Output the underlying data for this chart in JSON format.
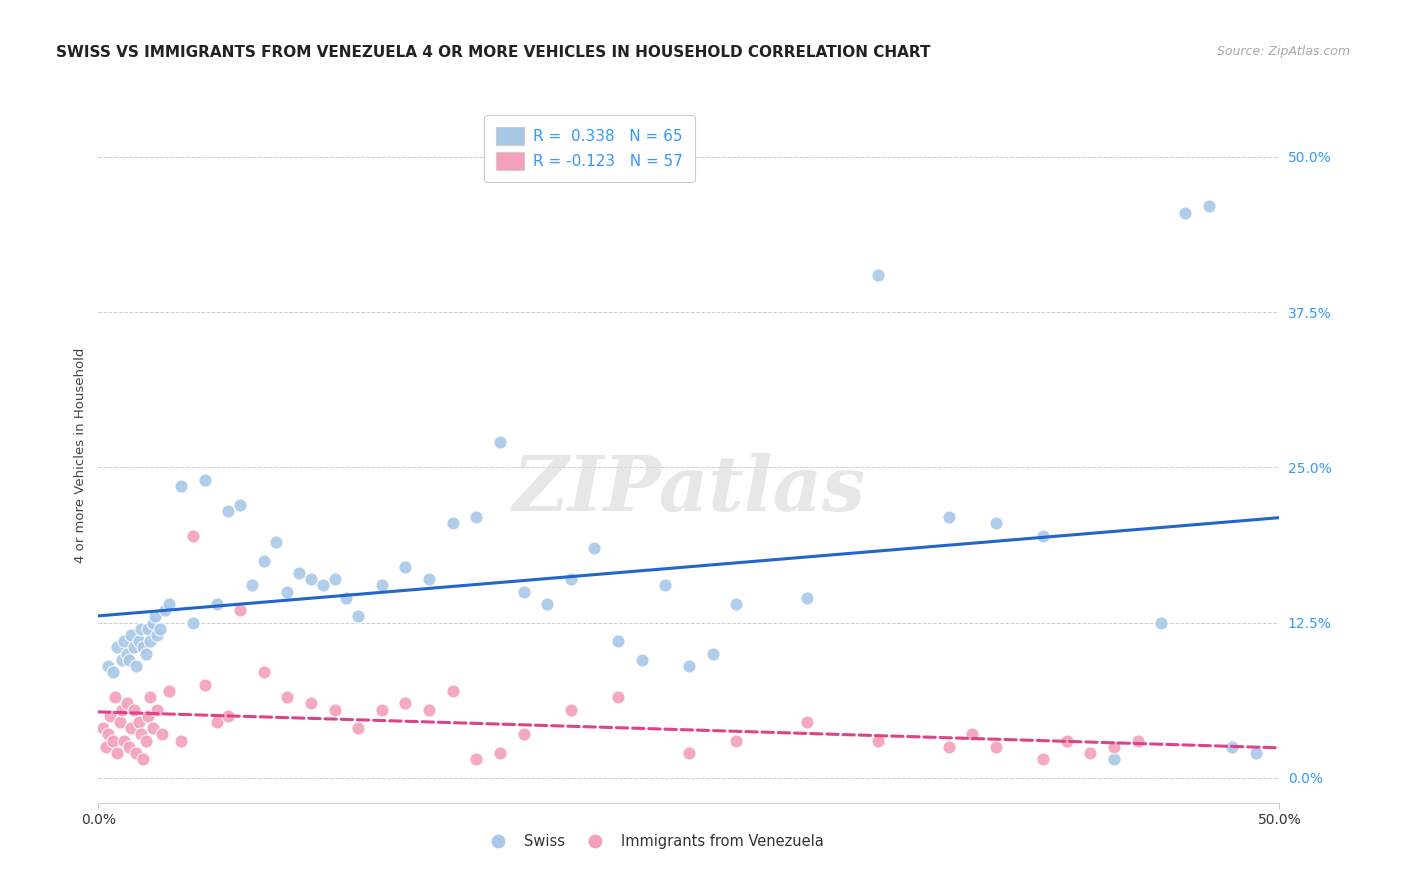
{
  "title": "SWISS VS IMMIGRANTS FROM VENEZUELA 4 OR MORE VEHICLES IN HOUSEHOLD CORRELATION CHART",
  "source": "Source: ZipAtlas.com",
  "ylabel": "4 or more Vehicles in Household",
  "ytick_values": [
    0.0,
    12.5,
    25.0,
    37.5,
    50.0
  ],
  "xlim": [
    0.0,
    50.0
  ],
  "ylim": [
    -2.0,
    54.0
  ],
  "watermark": "ZIPatlas",
  "legend_swiss_r": "R =  0.338",
  "legend_swiss_n": "N = 65",
  "legend_ven_r": "R = -0.123",
  "legend_ven_n": "N = 57",
  "swiss_color": "#a8c8e8",
  "venezuela_color": "#f4a0b8",
  "swiss_line_color": "#2266cc",
  "venezuela_line_color": "#dd4488",
  "swiss_scatter_x": [
    0.4,
    0.6,
    0.8,
    1.0,
    1.1,
    1.2,
    1.3,
    1.4,
    1.5,
    1.6,
    1.7,
    1.8,
    1.9,
    2.0,
    2.1,
    2.2,
    2.3,
    2.4,
    2.5,
    2.6,
    2.8,
    3.0,
    3.5,
    4.0,
    4.5,
    5.0,
    5.5,
    6.0,
    6.5,
    7.0,
    7.5,
    8.0,
    8.5,
    9.0,
    9.5,
    10.0,
    10.5,
    11.0,
    12.0,
    13.0,
    14.0,
    15.0,
    16.0,
    17.0,
    18.0,
    19.0,
    20.0,
    21.0,
    22.0,
    23.0,
    24.0,
    25.0,
    26.0,
    27.0,
    30.0,
    33.0,
    36.0,
    38.0,
    40.0,
    43.0,
    45.0,
    46.0,
    47.0,
    48.0,
    49.0
  ],
  "swiss_scatter_y": [
    9.0,
    8.5,
    10.5,
    9.5,
    11.0,
    10.0,
    9.5,
    11.5,
    10.5,
    9.0,
    11.0,
    12.0,
    10.5,
    10.0,
    12.0,
    11.0,
    12.5,
    13.0,
    11.5,
    12.0,
    13.5,
    14.0,
    23.5,
    12.5,
    24.0,
    14.0,
    21.5,
    22.0,
    15.5,
    17.5,
    19.0,
    15.0,
    16.5,
    16.0,
    15.5,
    16.0,
    14.5,
    13.0,
    15.5,
    17.0,
    16.0,
    20.5,
    21.0,
    27.0,
    15.0,
    14.0,
    16.0,
    18.5,
    11.0,
    9.5,
    15.5,
    9.0,
    10.0,
    14.0,
    14.5,
    40.5,
    21.0,
    20.5,
    19.5,
    1.5,
    12.5,
    45.5,
    46.0,
    2.5,
    2.0
  ],
  "venezuela_scatter_x": [
    0.2,
    0.3,
    0.4,
    0.5,
    0.6,
    0.7,
    0.8,
    0.9,
    1.0,
    1.1,
    1.2,
    1.3,
    1.4,
    1.5,
    1.6,
    1.7,
    1.8,
    1.9,
    2.0,
    2.1,
    2.2,
    2.3,
    2.5,
    2.7,
    3.0,
    3.5,
    4.0,
    4.5,
    5.0,
    5.5,
    6.0,
    7.0,
    8.0,
    9.0,
    10.0,
    11.0,
    12.0,
    13.0,
    14.0,
    15.0,
    16.0,
    17.0,
    18.0,
    20.0,
    22.0,
    25.0,
    27.0,
    30.0,
    33.0,
    36.0,
    37.0,
    38.0,
    40.0,
    41.0,
    42.0,
    43.0,
    44.0
  ],
  "venezuela_scatter_y": [
    4.0,
    2.5,
    3.5,
    5.0,
    3.0,
    6.5,
    2.0,
    4.5,
    5.5,
    3.0,
    6.0,
    2.5,
    4.0,
    5.5,
    2.0,
    4.5,
    3.5,
    1.5,
    3.0,
    5.0,
    6.5,
    4.0,
    5.5,
    3.5,
    7.0,
    3.0,
    19.5,
    7.5,
    4.5,
    5.0,
    13.5,
    8.5,
    6.5,
    6.0,
    5.5,
    4.0,
    5.5,
    6.0,
    5.5,
    7.0,
    1.5,
    2.0,
    3.5,
    5.5,
    6.5,
    2.0,
    3.0,
    4.5,
    3.0,
    2.5,
    3.5,
    2.5,
    1.5,
    3.0,
    2.0,
    2.5,
    3.0
  ],
  "background_color": "#ffffff",
  "grid_color": "#cccccc"
}
